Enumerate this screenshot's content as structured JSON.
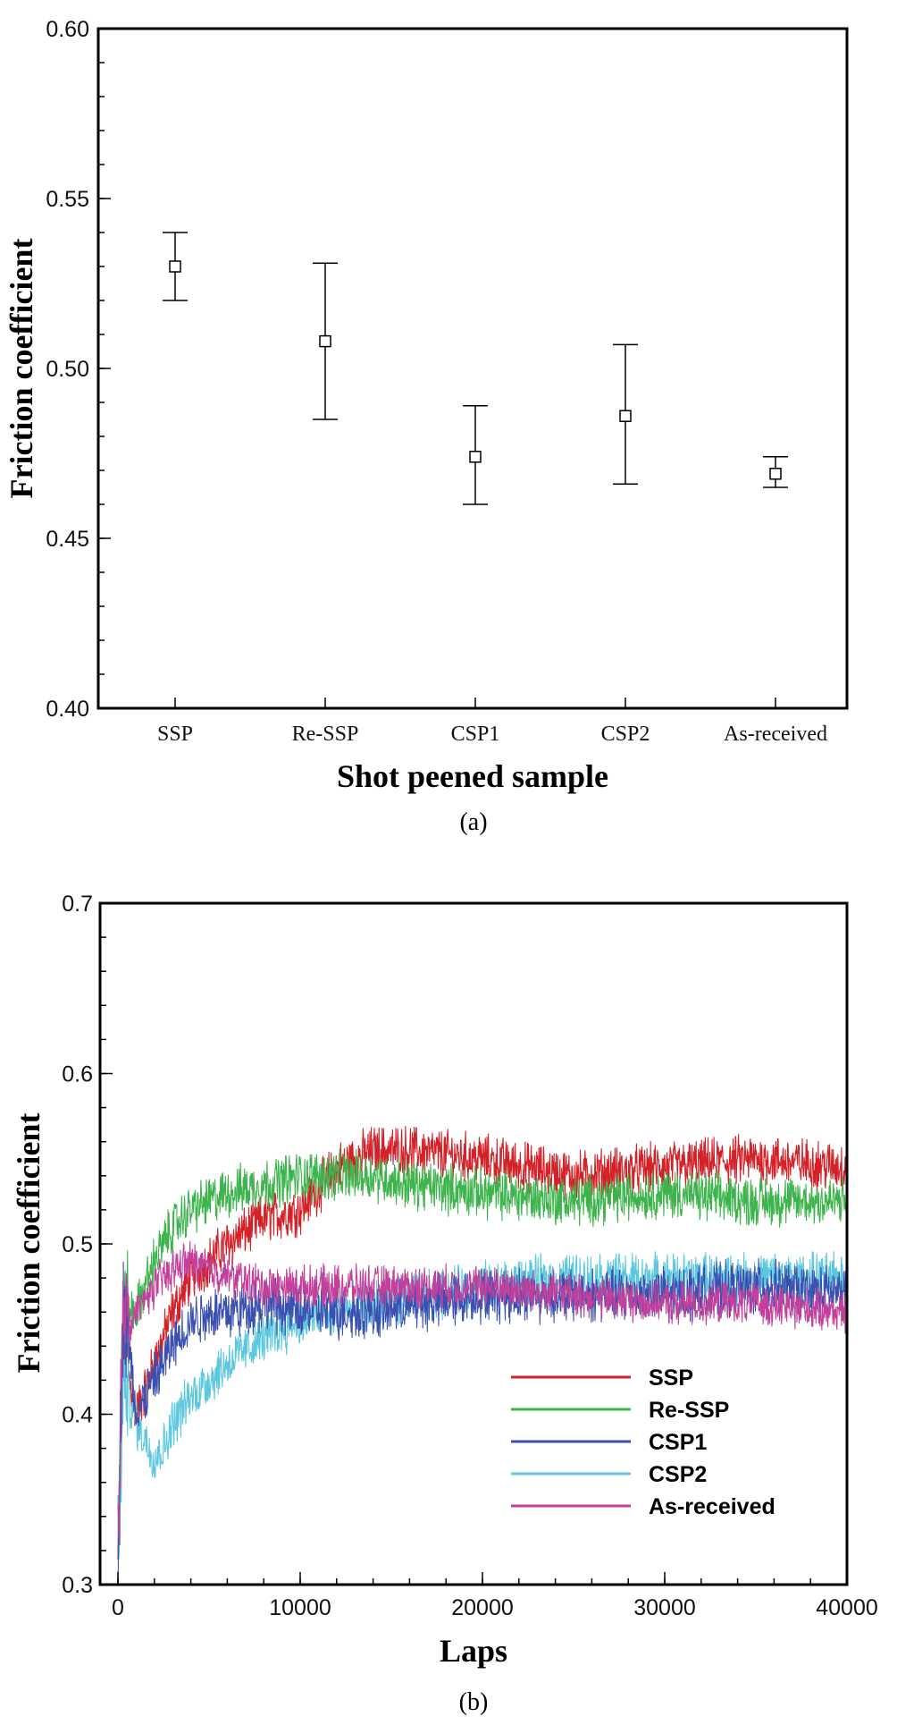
{
  "chart_data": [
    {
      "type": "scatter",
      "caption": "(a)",
      "xlabel": "Shot peened sample",
      "ylabel": "Friction coefficient",
      "categories": [
        "SSP",
        "Re-SSP",
        "CSP1",
        "CSP2",
        "As-received"
      ],
      "values": [
        0.53,
        0.508,
        0.474,
        0.486,
        0.469
      ],
      "error_low": [
        0.52,
        0.485,
        0.46,
        0.466,
        0.465
      ],
      "error_high": [
        0.54,
        0.531,
        0.489,
        0.507,
        0.474
      ],
      "ylim": [
        0.4,
        0.6
      ],
      "yticks": [
        "0.40",
        "0.45",
        "0.50",
        "0.55",
        "0.60"
      ],
      "marker": "open-square"
    },
    {
      "type": "line",
      "caption": "(b)",
      "xlabel": "Laps",
      "ylabel": "Friction coefficient",
      "xlim": [
        0,
        40000
      ],
      "ylim": [
        0.3,
        0.7
      ],
      "xticks": [
        "0",
        "10000",
        "20000",
        "30000",
        "40000"
      ],
      "yticks": [
        "0.3",
        "0.4",
        "0.5",
        "0.6",
        "0.7"
      ],
      "legend_position": "lower-right",
      "series": [
        {
          "name": "SSP",
          "color": "#d42027",
          "x": [
            0,
            300,
            1000,
            2000,
            3000,
            4000,
            6000,
            8000,
            10000,
            12000,
            14000,
            16000,
            20000,
            25000,
            30000,
            35000,
            40000
          ],
          "y": [
            0.31,
            0.44,
            0.4,
            0.43,
            0.46,
            0.48,
            0.5,
            0.515,
            0.52,
            0.545,
            0.555,
            0.555,
            0.55,
            0.54,
            0.545,
            0.55,
            0.545
          ],
          "noise": 0.012
        },
        {
          "name": "Re-SSP",
          "color": "#3cb44b",
          "x": [
            0,
            300,
            1000,
            2000,
            3000,
            4000,
            6000,
            8000,
            10000,
            12000,
            14000,
            16000,
            20000,
            25000,
            30000,
            35000,
            40000
          ],
          "y": [
            0.33,
            0.46,
            0.46,
            0.49,
            0.51,
            0.52,
            0.53,
            0.535,
            0.54,
            0.54,
            0.54,
            0.535,
            0.53,
            0.525,
            0.53,
            0.525,
            0.525
          ],
          "noise": 0.012
        },
        {
          "name": "CSP1",
          "color": "#3a4fb0",
          "x": [
            0,
            300,
            1000,
            2000,
            3000,
            4000,
            5000,
            6000,
            8000,
            10000,
            14000,
            20000,
            25000,
            30000,
            35000,
            40000
          ],
          "y": [
            0.31,
            0.47,
            0.4,
            0.42,
            0.44,
            0.455,
            0.46,
            0.46,
            0.465,
            0.46,
            0.46,
            0.47,
            0.47,
            0.47,
            0.475,
            0.47
          ],
          "noise": 0.013
        },
        {
          "name": "CSP2",
          "color": "#5bc8df",
          "x": [
            0,
            300,
            1000,
            2000,
            2500,
            3000,
            4000,
            5000,
            6000,
            8000,
            10000,
            14000,
            20000,
            25000,
            30000,
            35000,
            40000
          ],
          "y": [
            0.32,
            0.42,
            0.395,
            0.375,
            0.38,
            0.395,
            0.41,
            0.42,
            0.43,
            0.445,
            0.455,
            0.465,
            0.475,
            0.48,
            0.48,
            0.48,
            0.48
          ],
          "noise": 0.012
        },
        {
          "name": "As-received",
          "color": "#c2409c",
          "x": [
            0,
            300,
            600,
            1000,
            2000,
            3000,
            4000,
            5000,
            8000,
            12000,
            20000,
            25000,
            30000,
            35000,
            40000
          ],
          "y": [
            0.32,
            0.48,
            0.45,
            0.46,
            0.475,
            0.485,
            0.49,
            0.485,
            0.475,
            0.475,
            0.475,
            0.47,
            0.465,
            0.465,
            0.46
          ],
          "noise": 0.01
        }
      ]
    }
  ]
}
